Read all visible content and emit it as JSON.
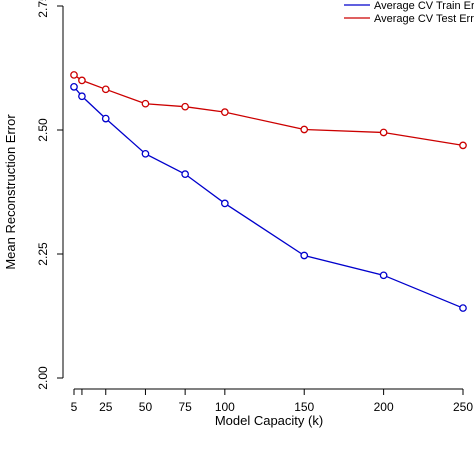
{
  "chart_data": {
    "type": "line",
    "x": [
      5,
      10,
      25,
      50,
      75,
      100,
      150,
      200,
      250
    ],
    "xticks": [
      5,
      25,
      50,
      75,
      100,
      150,
      200,
      250
    ],
    "xtick_labels": [
      "5",
      "25",
      "50",
      "75",
      "100",
      "150",
      "200",
      "250"
    ],
    "yticks": [
      2.0,
      2.25,
      2.5,
      2.75
    ],
    "ytick_labels": [
      "2.00",
      "2.25",
      "2.50",
      "2.75"
    ],
    "xlim": [
      5,
      250
    ],
    "ylim": [
      2.0,
      2.75
    ],
    "xlabel": "Model Capacity (k)",
    "ylabel": "Mean Reconstruction Error",
    "grid": false,
    "legend_position": "top-right",
    "series": [
      {
        "name": "Average CV Train Error",
        "color": "#0000cc",
        "values": [
          2.587,
          2.568,
          2.523,
          2.452,
          2.411,
          2.352,
          2.247,
          2.207,
          2.141
        ]
      },
      {
        "name": "Average CV Test Error",
        "color": "#cc0000",
        "values": [
          2.611,
          2.6,
          2.582,
          2.553,
          2.547,
          2.536,
          2.501,
          2.495,
          2.469
        ]
      }
    ]
  }
}
